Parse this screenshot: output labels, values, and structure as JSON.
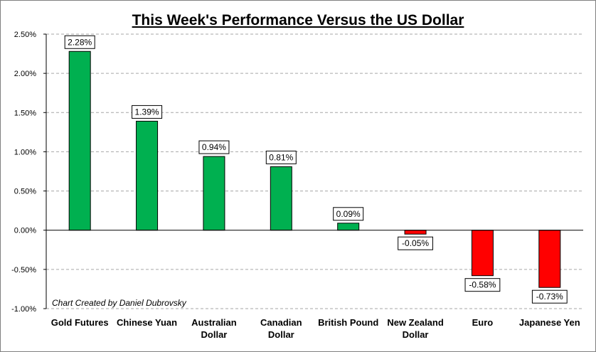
{
  "chart_data": {
    "type": "bar",
    "title": "This Week's Performance Versus the US Dollar",
    "categories": [
      "Gold Futures",
      "Chinese Yuan",
      "Australian Dollar",
      "Canadian Dollar",
      "British Pound",
      "New Zealand Dollar",
      "Euro",
      "Japanese Yen"
    ],
    "category_lines": [
      [
        "Gold Futures"
      ],
      [
        "Chinese Yuan"
      ],
      [
        "Australian",
        "Dollar"
      ],
      [
        "Canadian",
        "Dollar"
      ],
      [
        "British Pound"
      ],
      [
        "New Zealand",
        "Dollar"
      ],
      [
        "Euro"
      ],
      [
        "Japanese Yen"
      ]
    ],
    "values": [
      2.28,
      1.39,
      0.94,
      0.81,
      0.09,
      -0.05,
      -0.58,
      -0.73
    ],
    "data_labels": [
      "2.28%",
      "1.39%",
      "0.94%",
      "0.81%",
      "0.09%",
      "-0.05%",
      "-0.58%",
      "-0.73%"
    ],
    "yticks": [
      2.5,
      2.0,
      1.5,
      1.0,
      0.5,
      0.0,
      -0.5,
      -1.0
    ],
    "ytick_labels": [
      "2.50%",
      "2.00%",
      "1.50%",
      "1.00%",
      "0.50%",
      "0.00%",
      "-0.50%",
      "-1.00%"
    ],
    "ylim": [
      -1.0,
      2.5
    ],
    "xlabel": "",
    "ylabel": "",
    "grid": true,
    "legend": "none",
    "annotation": "Chart Created by Daniel Dubrovsky",
    "colors": {
      "positive": "#00b050",
      "negative": "#ff0000",
      "grid": "#a6a6a6",
      "axis": "#000000"
    }
  }
}
